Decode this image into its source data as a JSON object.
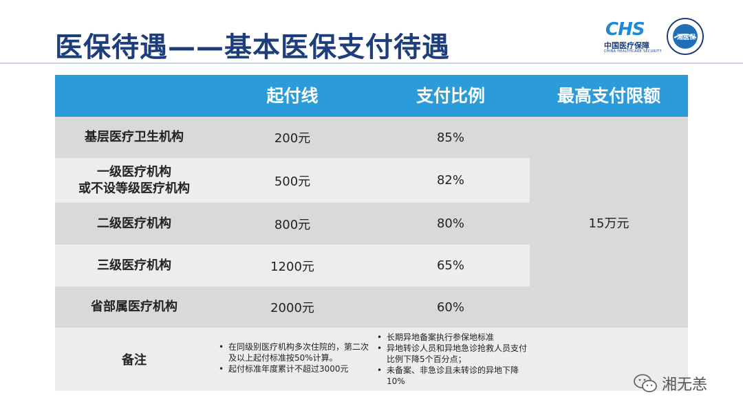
{
  "header": {
    "title": "医保待遇——基本医保支付待遇",
    "logo_chs": {
      "mark": "CHS",
      "cn": "中国医疗保障",
      "en": "CHINA HEALTHCARE SECURITY"
    },
    "seal": {
      "text": "湘医保"
    }
  },
  "table": {
    "columns": [
      "",
      "起付线",
      "支付比例",
      "最高支付限额"
    ],
    "rows": [
      {
        "name": "基层医疗卫生机构",
        "threshold": "200元",
        "ratio": "85%"
      },
      {
        "name": "一级医疗机构\n或不设等级医疗机构",
        "threshold": "500元",
        "ratio": "82%"
      },
      {
        "name": "二级医疗机构",
        "threshold": "800元",
        "ratio": "80%"
      },
      {
        "name": "三级医疗机构",
        "threshold": "1200元",
        "ratio": "65%"
      },
      {
        "name": "省部属医疗机构",
        "threshold": "2000元",
        "ratio": "60%"
      }
    ],
    "max_limit": "15万元",
    "notes": {
      "label": "备注",
      "left": [
        "在同级别医疗机构多次住院的，第二次及以上起付标准按50%计算。",
        "起付标准年度累计不超过3000元"
      ],
      "right": [
        "长期异地备案执行参保地标准",
        "异地转诊人员和异地急诊抢救人员支付比例下降5个百分点；",
        "未备案、非急诊且未转诊的异地下降10%"
      ]
    }
  },
  "watermark": {
    "text": "湘无恙",
    "icon": "wechat-icon"
  },
  "colors": {
    "title": "#1d3e7a",
    "header_bg": "#2c9bd9",
    "row_dark": "#d9d9d9",
    "row_light": "#ededed"
  }
}
